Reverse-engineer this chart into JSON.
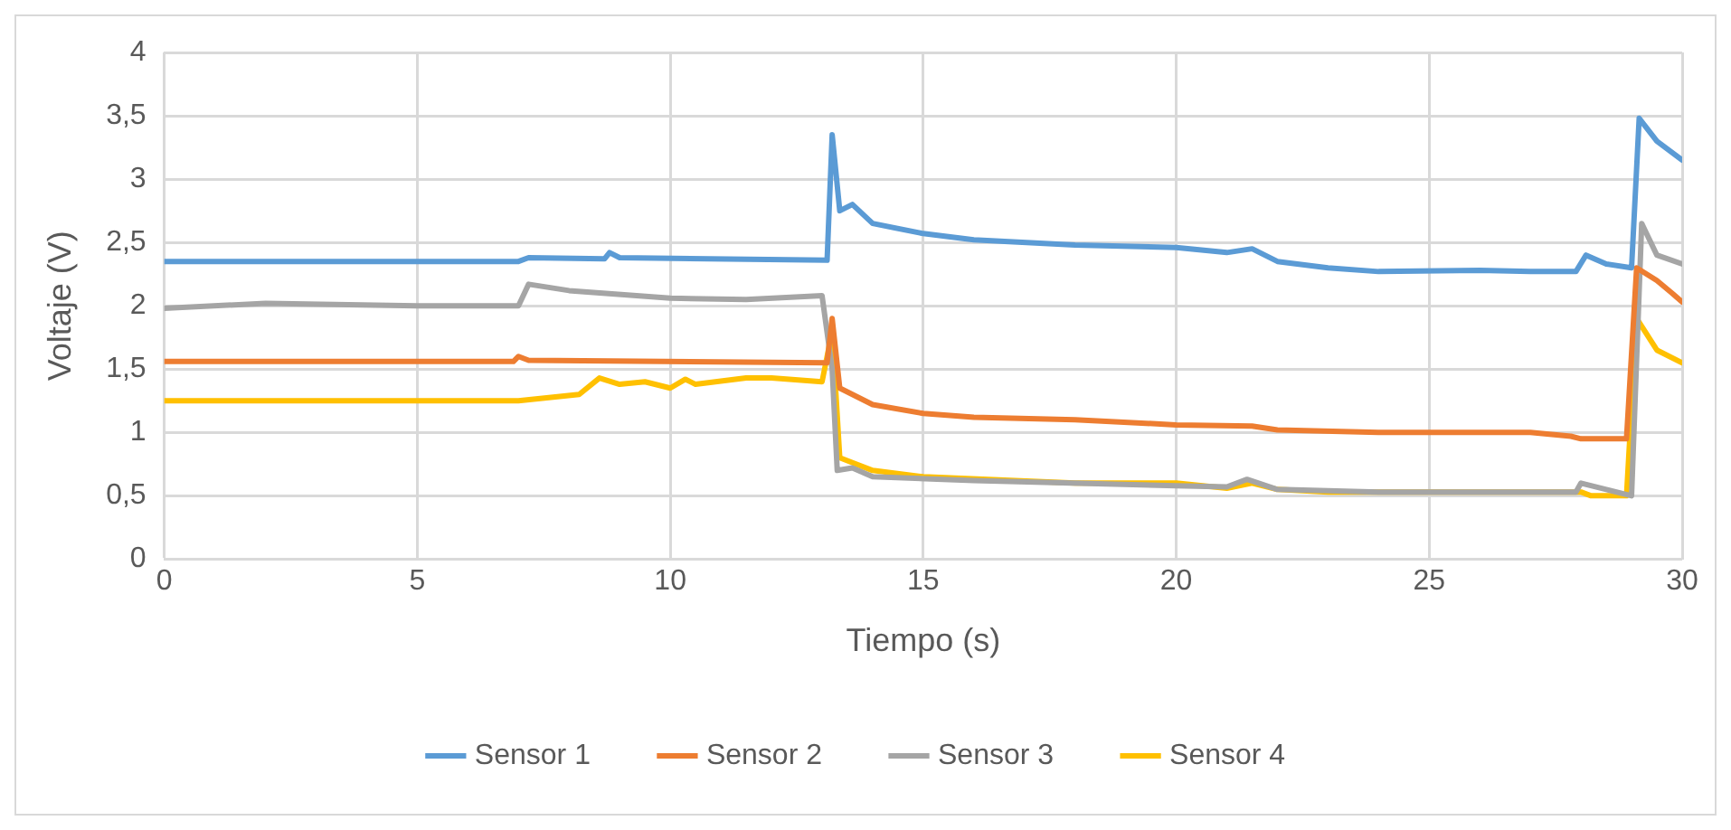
{
  "chart_data": {
    "type": "line",
    "xlabel": "Tiempo (s)",
    "ylabel": "Voltaje (V)",
    "xlim": [
      0,
      30
    ],
    "xticks": [
      0,
      5,
      10,
      15,
      20,
      25,
      30
    ],
    "ylim": [
      0,
      4
    ],
    "yticks": [
      {
        "value": 0,
        "label": "0"
      },
      {
        "value": 0.5,
        "label": "0,5"
      },
      {
        "value": 1,
        "label": "1"
      },
      {
        "value": 1.5,
        "label": "1,5"
      },
      {
        "value": 2,
        "label": "2"
      },
      {
        "value": 2.5,
        "label": "2,5"
      },
      {
        "value": 3,
        "label": "3"
      },
      {
        "value": 3.5,
        "label": "3,5"
      },
      {
        "value": 4,
        "label": "4"
      }
    ],
    "grid": true,
    "legend": "bottom",
    "marker": "none",
    "line_style": "solid",
    "series": [
      {
        "name": "Sensor 1",
        "color": "#5b9bd5",
        "x": [
          0,
          7,
          7.2,
          8.7,
          8.8,
          9,
          13.1,
          13.2,
          13.35,
          13.6,
          14,
          15,
          16,
          18,
          20,
          21,
          21.5,
          22,
          23,
          24,
          26,
          27,
          27.9,
          28.1,
          28.5,
          29,
          29.15,
          29.5,
          30
        ],
        "values": [
          2.35,
          2.35,
          2.38,
          2.37,
          2.42,
          2.38,
          2.36,
          3.35,
          2.75,
          2.8,
          2.65,
          2.57,
          2.52,
          2.48,
          2.46,
          2.42,
          2.45,
          2.35,
          2.3,
          2.27,
          2.28,
          2.27,
          2.27,
          2.4,
          2.33,
          2.3,
          3.48,
          3.3,
          3.15
        ]
      },
      {
        "name": "Sensor 2",
        "color": "#ed7d31",
        "x": [
          0,
          6.9,
          7,
          7.2,
          13.1,
          13.2,
          13.35,
          14,
          15,
          16,
          18,
          20,
          21.5,
          22,
          24,
          27,
          27.8,
          28,
          28.9,
          29.1,
          29.5,
          29.8,
          30
        ],
        "values": [
          1.56,
          1.56,
          1.6,
          1.57,
          1.55,
          1.9,
          1.35,
          1.22,
          1.15,
          1.12,
          1.1,
          1.06,
          1.05,
          1.02,
          1.0,
          1.0,
          0.97,
          0.95,
          0.95,
          2.3,
          2.2,
          2.1,
          2.03
        ]
      },
      {
        "name": "Sensor 3",
        "color": "#a5a5a5",
        "x": [
          0,
          2,
          5,
          7,
          7.2,
          8,
          10,
          11.5,
          13,
          13.2,
          13.3,
          13.6,
          14,
          16,
          20,
          21,
          21.4,
          22,
          24,
          27.9,
          28,
          28.5,
          29,
          29.2,
          29.5,
          30
        ],
        "values": [
          1.98,
          2.02,
          2.0,
          2.0,
          2.17,
          2.12,
          2.06,
          2.05,
          2.08,
          1.5,
          0.7,
          0.72,
          0.65,
          0.62,
          0.58,
          0.57,
          0.63,
          0.55,
          0.53,
          0.53,
          0.6,
          0.55,
          0.5,
          2.65,
          2.4,
          2.33
        ]
      },
      {
        "name": "Sensor 4",
        "color": "#ffc000",
        "x": [
          0,
          7,
          8.2,
          8.6,
          9,
          9.5,
          10,
          10.3,
          10.5,
          11.5,
          12,
          13,
          13.2,
          13.35,
          14,
          15,
          18,
          20,
          21,
          21.5,
          22,
          23,
          28,
          28.2,
          28.9,
          29.1,
          29.5,
          30
        ],
        "values": [
          1.25,
          1.25,
          1.3,
          1.43,
          1.38,
          1.4,
          1.35,
          1.42,
          1.38,
          1.43,
          1.43,
          1.4,
          1.8,
          0.8,
          0.7,
          0.65,
          0.6,
          0.6,
          0.56,
          0.6,
          0.55,
          0.53,
          0.53,
          0.5,
          0.5,
          1.9,
          1.65,
          1.55
        ]
      }
    ]
  }
}
